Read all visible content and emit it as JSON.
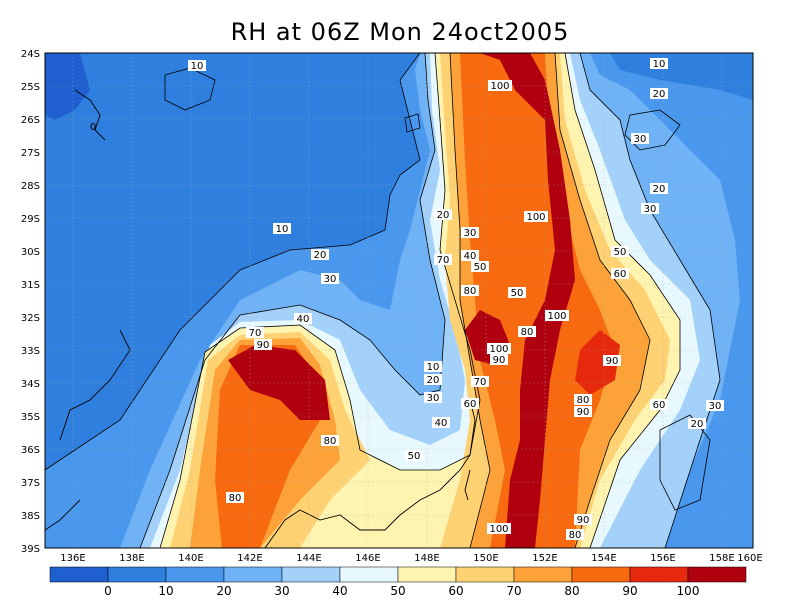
{
  "title": "RH at 06Z Mon 24oct2005",
  "lat_labels": [
    "24S",
    "25S",
    "26S",
    "27S",
    "28S",
    "29S",
    "30S",
    "31S",
    "32S",
    "33S",
    "34S",
    "35S",
    "36S",
    "37S",
    "38S",
    "39S"
  ],
  "lon_labels": [
    "136E",
    "138E",
    "140E",
    "142E",
    "144E",
    "146E",
    "148E",
    "150E",
    "152E",
    "154E",
    "156E",
    "158E",
    "160E"
  ],
  "contour_labels": [
    "10",
    "20",
    "30",
    "40",
    "50",
    "60",
    "70",
    "80",
    "90",
    "100"
  ],
  "colorbar": {
    "ticks": [
      "0",
      "10",
      "20",
      "30",
      "40",
      "50",
      "60",
      "70",
      "80",
      "90",
      "100"
    ],
    "colors": [
      "#1f5fcf",
      "#2f7fdf",
      "#4a97ee",
      "#6fb2f5",
      "#a3d1fa",
      "#e8f8ff",
      "#fff3b0",
      "#fed173",
      "#fca238",
      "#f86a10",
      "#e6290c",
      "#b00010"
    ]
  },
  "colors": {
    "background": "#ffffff",
    "base": "#2f7fdf"
  }
}
